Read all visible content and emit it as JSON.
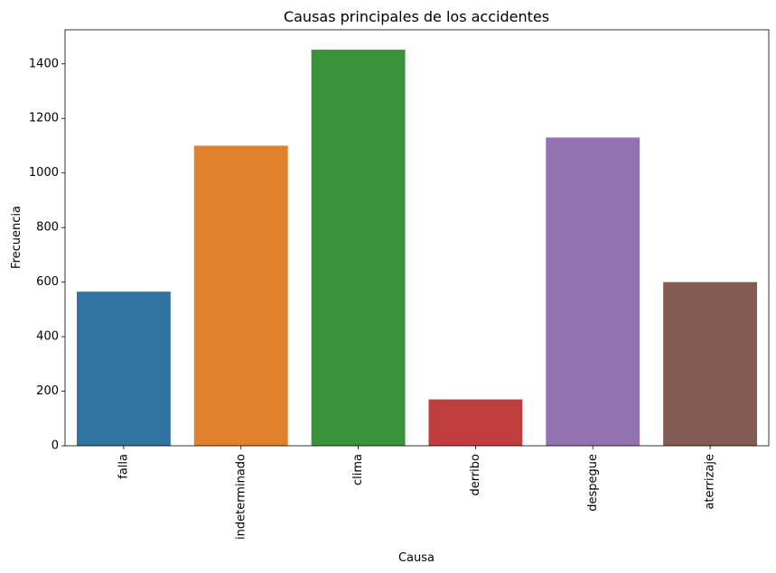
{
  "chart_data": {
    "type": "bar",
    "title": "Causas principales de los accidentes",
    "xlabel": "Causa",
    "ylabel": "Frecuencia",
    "categories": [
      "falla",
      "indeterminado",
      "clima",
      "derribo",
      "despegue",
      "aterrizaje"
    ],
    "values": [
      565,
      1100,
      1452,
      170,
      1130,
      600
    ],
    "colors": [
      "#3274a1",
      "#e1812c",
      "#3a923a",
      "#c03d3e",
      "#9372b2",
      "#845b53"
    ],
    "ylim": [
      0,
      1525
    ],
    "yticks": [
      0,
      200,
      400,
      600,
      800,
      1000,
      1200,
      1400
    ],
    "x_tick_rotation": "vertical",
    "grid": false,
    "legend": "none"
  }
}
